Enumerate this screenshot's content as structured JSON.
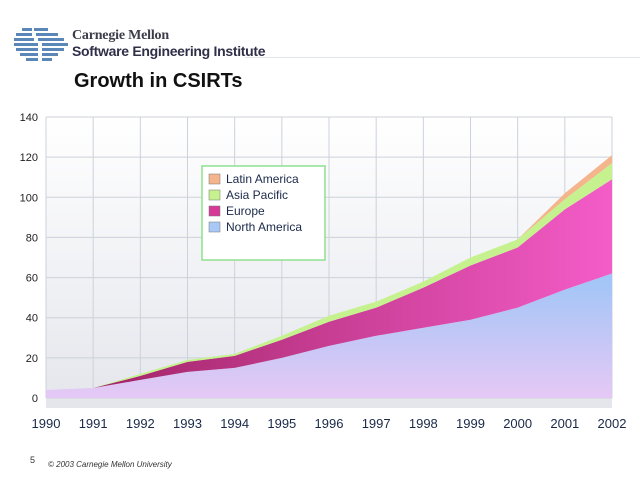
{
  "header": {
    "logo_line1": "Carnegie Mellon",
    "logo_line2": "Software Engineering Institute"
  },
  "title": "Growth in CSIRTs",
  "footer": {
    "page_number": "5",
    "copyright": "© 2003 Carnegie Mellon University"
  },
  "chart_data": {
    "type": "area",
    "stacked": true,
    "title": "",
    "xlabel": "",
    "ylabel": "",
    "x": [
      "1990",
      "1991",
      "1992",
      "1993",
      "1994",
      "1995",
      "1996",
      "1997",
      "1998",
      "1999",
      "2000",
      "2001",
      "2002"
    ],
    "ylim": [
      0,
      140
    ],
    "yticks": [
      0,
      20,
      40,
      60,
      80,
      100,
      120,
      140
    ],
    "grid": true,
    "legend_position": "upper-left",
    "series": [
      {
        "name": "North America",
        "color": "#a9c8f5",
        "values": [
          4,
          5,
          9,
          13,
          15,
          20,
          26,
          31,
          35,
          39,
          45,
          54,
          62
        ]
      },
      {
        "name": "Europe",
        "color": "#d63a96",
        "values": [
          0,
          0,
          2,
          5,
          6,
          9,
          12,
          14,
          20,
          27,
          30,
          40,
          47
        ]
      },
      {
        "name": "Asia Pacific",
        "color": "#c5f28e",
        "values": [
          0,
          0,
          1,
          1,
          1,
          2,
          3,
          3,
          3,
          4,
          4,
          5,
          8
        ]
      },
      {
        "name": "Latin America",
        "color": "#f4b58c",
        "values": [
          0,
          0,
          0,
          0,
          0,
          0,
          0,
          0,
          0,
          0,
          0,
          3,
          4
        ]
      }
    ]
  }
}
